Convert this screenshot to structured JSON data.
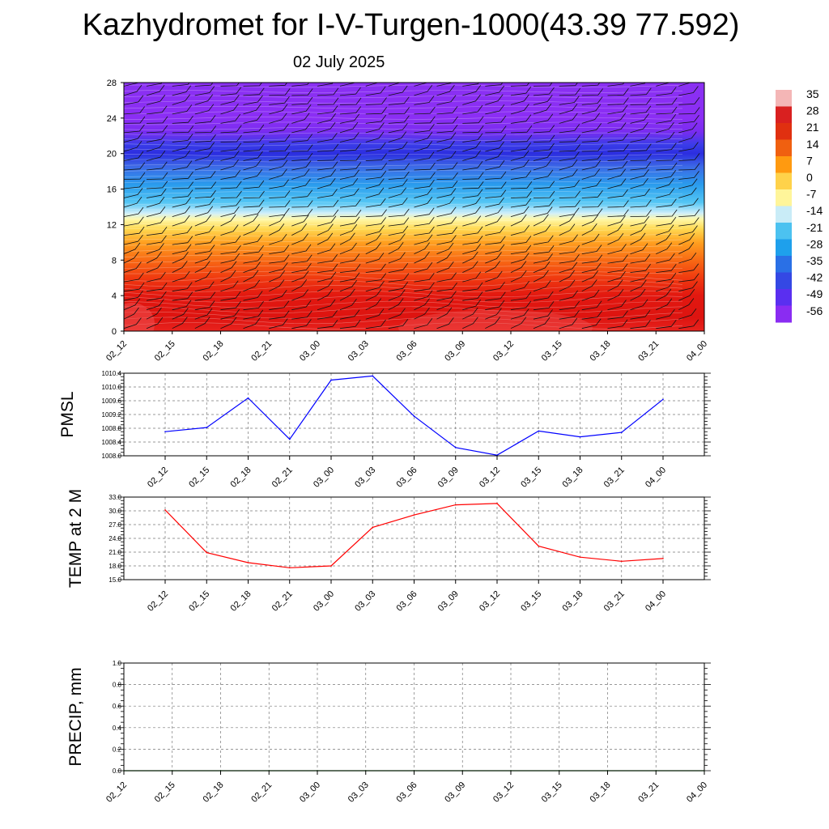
{
  "title": "Kazhydromet for I-V-Turgen-1000(43.39 77.592)",
  "subtitle": "02 July 2025",
  "time_labels": [
    "02_12",
    "02_15",
    "02_18",
    "02_21",
    "03_00",
    "03_03",
    "03_06",
    "03_09",
    "03_12",
    "03_15",
    "03_18",
    "03_21",
    "04_00"
  ],
  "chart_data": [
    {
      "type": "heatmap",
      "name": "height-time temperature cross-section with wind barbs",
      "y_ticks": [
        0,
        4,
        8,
        12,
        16,
        20,
        24,
        28
      ],
      "ylim": [
        0,
        28
      ],
      "colorbar_labels": [
        "35",
        "28",
        "21",
        "14",
        "7",
        "0",
        "-7",
        "-14",
        "-21",
        "-28",
        "-35",
        "-42",
        "-49",
        "-56"
      ],
      "colorbar_colors": [
        "#f4b6b6",
        "#d92020",
        "#e03010",
        "#f06010",
        "#ff9a10",
        "#ffd24a",
        "#fff59a",
        "#c9ecf7",
        "#4cc2f0",
        "#1ea0ec",
        "#2a70e6",
        "#3448e4",
        "#5a2ff0",
        "#8a2cf2"
      ],
      "layers": [
        {
          "h": 0,
          "color": "#e8231e"
        },
        {
          "h": 1.5,
          "color": "#dd1410"
        },
        {
          "h": 4,
          "color": "#e21810"
        },
        {
          "h": 6,
          "color": "#f03a10"
        },
        {
          "h": 8,
          "color": "#f86a14"
        },
        {
          "h": 10,
          "color": "#ffa020"
        },
        {
          "h": 11.5,
          "color": "#ffd850"
        },
        {
          "h": 12.6,
          "color": "#fff8a8"
        },
        {
          "h": 13.3,
          "color": "#cdeefa"
        },
        {
          "h": 14.5,
          "color": "#54c6f4"
        },
        {
          "h": 16.5,
          "color": "#2a9ced"
        },
        {
          "h": 18.5,
          "color": "#3c6ae6"
        },
        {
          "h": 20,
          "color": "#2c2ee0"
        },
        {
          "h": 21,
          "color": "#3a3ce8"
        },
        {
          "h": 22.5,
          "color": "#7a2cf0"
        },
        {
          "h": 24,
          "color": "#8b2ef4"
        },
        {
          "h": 28,
          "color": "#8a30f2"
        }
      ]
    },
    {
      "type": "line",
      "ylabel": "PMSL",
      "x": [
        "02_12",
        "02_15",
        "02_18",
        "02_21",
        "03_00",
        "03_03",
        "03_06",
        "03_09",
        "03_12",
        "03_15",
        "03_18",
        "03_21",
        "04_00"
      ],
      "values": [
        1008.7,
        1008.82,
        1009.68,
        1008.48,
        1010.2,
        1010.32,
        1009.15,
        1008.24,
        1008.02,
        1008.72,
        1008.55,
        1008.68,
        1009.64
      ],
      "ylim": [
        1008.0,
        1010.4
      ],
      "y_ticks": [
        "1008.0",
        "1008.4",
        "1008.8",
        "1009.2",
        "1009.6",
        "1010.0",
        "1010.4"
      ],
      "color": "#0000ff",
      "grid": true
    },
    {
      "type": "line",
      "ylabel": "TEMP at 2 M",
      "x": [
        "02_12",
        "02_15",
        "02_18",
        "02_21",
        "03_00",
        "03_03",
        "03_06",
        "03_09",
        "03_12",
        "03_15",
        "03_18",
        "03_21",
        "04_00"
      ],
      "values": [
        30.2,
        20.9,
        18.7,
        17.6,
        18.0,
        26.4,
        29.1,
        31.3,
        31.6,
        22.3,
        19.9,
        19.0,
        19.6
      ],
      "ylim": [
        15.0,
        33.0
      ],
      "y_ticks": [
        "15.0",
        "18.0",
        "21.0",
        "24.0",
        "27.0",
        "30.0",
        "33.0"
      ],
      "color": "#ff0000",
      "grid": true
    },
    {
      "type": "line",
      "ylabel": "PRECIP, mm",
      "x": [
        "02_12",
        "02_15",
        "02_18",
        "02_21",
        "03_00",
        "03_03",
        "03_06",
        "03_09",
        "03_12",
        "03_15",
        "03_18",
        "03_21",
        "04_00"
      ],
      "values": [
        0,
        0,
        0,
        0,
        0,
        0,
        0,
        0,
        0,
        0,
        0,
        0,
        0
      ],
      "ylim": [
        0.0,
        1.0
      ],
      "y_ticks": [
        "0.0",
        "0.2",
        "0.4",
        "0.6",
        "0.8",
        "1.0"
      ],
      "color": "#008000",
      "grid": true
    }
  ]
}
